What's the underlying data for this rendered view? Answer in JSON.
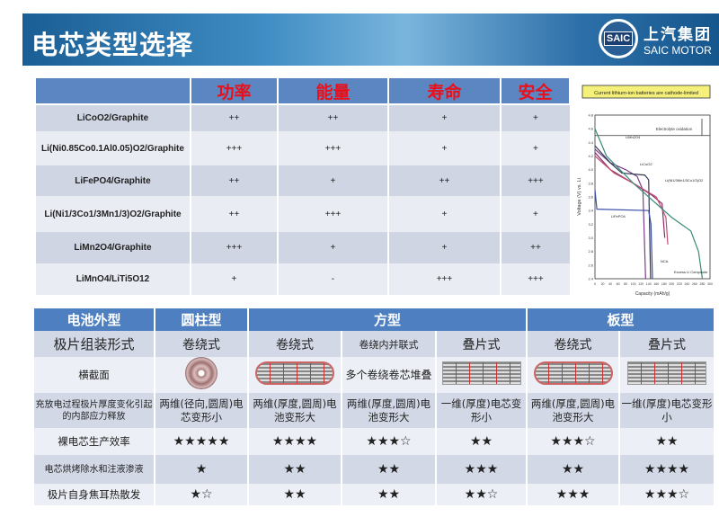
{
  "header": {
    "title": "电芯类型选择",
    "logo_badge": "SAIC",
    "logo_cn": "上汽集团",
    "logo_en": "SAIC MOTOR"
  },
  "chemistry_table": {
    "columns": [
      "",
      "功率",
      "能量",
      "寿命",
      "安全"
    ],
    "rows": [
      {
        "material": "LiCoO2/Graphite",
        "values": [
          "++",
          "++",
          "+",
          "+"
        ]
      },
      {
        "material": "Li(Ni0.85Co0.1Al0.05)O2/Graphite",
        "values": [
          "+++",
          "+++",
          "+",
          "+"
        ]
      },
      {
        "material": "LiFePO4/Graphite",
        "values": [
          "++",
          "+",
          "++",
          "+++"
        ]
      },
      {
        "material": "Li(Ni1/3Co1/3Mn1/3)O2/Graphite",
        "values": [
          "++",
          "+++",
          "+",
          "+"
        ]
      },
      {
        "material": "LiMn2O4/Graphite",
        "values": [
          "+++",
          "+",
          "+",
          "++"
        ]
      },
      {
        "material": "LiMnO4/LiTi5O12",
        "values": [
          "+",
          "-",
          "+++",
          "+++"
        ]
      }
    ]
  },
  "chart_data": {
    "type": "line",
    "title": "Current lithium-ion batteries are cathode-limited",
    "xlabel": "Capacity (mAh/g)",
    "ylabel": "Voltage (V) vs. Li",
    "xlim": [
      0,
      300
    ],
    "ylim": [
      2.4,
      4.8
    ],
    "xticks": [
      0,
      20,
      40,
      60,
      80,
      100,
      120,
      140,
      160,
      180,
      200,
      220,
      240,
      260,
      280,
      300
    ],
    "yticks": [
      2.4,
      2.6,
      2.8,
      3.0,
      3.2,
      3.4,
      3.6,
      3.8,
      4.0,
      4.2,
      4.4,
      4.6,
      4.8
    ],
    "annotation": "Electrolyte oxidation",
    "annotation_y": 4.5,
    "series": [
      {
        "name": "LiMn2O4",
        "color": "#7a3e8a",
        "points": [
          [
            0,
            4.3
          ],
          [
            40,
            4.1
          ],
          [
            80,
            4.0
          ],
          [
            110,
            3.9
          ],
          [
            125,
            3.7
          ],
          [
            132,
            2.4
          ]
        ]
      },
      {
        "name": "LiCoO2",
        "color": "#333a55",
        "points": [
          [
            0,
            4.35
          ],
          [
            40,
            4.1
          ],
          [
            70,
            3.95
          ],
          [
            130,
            3.92
          ],
          [
            140,
            3.85
          ],
          [
            145,
            2.4
          ]
        ]
      },
      {
        "name": "LiFePO4",
        "color": "#3a4fa8",
        "points": [
          [
            0,
            3.7
          ],
          [
            5,
            3.42
          ],
          [
            140,
            3.4
          ],
          [
            146,
            3.2
          ],
          [
            150,
            2.4
          ]
        ]
      },
      {
        "name": "Li(Ni1/3Mn1/3Co1/3)O2",
        "color": "#8a2a6a",
        "points": [
          [
            0,
            4.25
          ],
          [
            40,
            4.0
          ],
          [
            100,
            3.8
          ],
          [
            150,
            3.62
          ],
          [
            175,
            3.5
          ],
          [
            182,
            3.0
          ]
        ]
      },
      {
        "name": "NCA",
        "color": "#c05070",
        "points": [
          [
            0,
            4.2
          ],
          [
            50,
            3.95
          ],
          [
            100,
            3.8
          ],
          [
            160,
            3.6
          ],
          [
            185,
            3.3
          ],
          [
            190,
            2.9
          ]
        ]
      },
      {
        "name": "Excess Li Composite",
        "color": "#3a8a7a",
        "points": [
          [
            0,
            4.6
          ],
          [
            30,
            4.2
          ],
          [
            100,
            3.8
          ],
          [
            200,
            3.3
          ],
          [
            250,
            3.1
          ],
          [
            270,
            2.8
          ],
          [
            280,
            2.4
          ]
        ]
      }
    ]
  },
  "format_table": {
    "header": [
      "电池外型",
      "圆柱型",
      "方型",
      "板型"
    ],
    "assembly": {
      "label": "极片组装形式",
      "values": [
        "卷绕式",
        "卷绕式",
        "卷绕内并联式",
        "叠片式",
        "卷绕式",
        "叠片式"
      ]
    },
    "cross_section": {
      "label": "横截面",
      "stacked_text": "多个卷绕卷芯堆叠"
    },
    "stress": {
      "label": "充放电过程极片厚度变化引起的内部应力释放",
      "values": [
        "两维(径向,圆周)电芯变形小",
        "两维(厚度,圆周)电池变形大",
        "两维(厚度,圆周)电池变形大",
        "一维(厚度)电芯变形小",
        "两维(厚度,圆周)电池变形大",
        "一维(厚度)电芯变形小"
      ]
    },
    "efficiency": {
      "label": "裸电芯生产效率",
      "values": [
        "★★★★★",
        "★★★★",
        "★★★☆",
        "★★",
        "★★★☆",
        "★★"
      ]
    },
    "baking": {
      "label": "电芯烘烤除水和注液渗液",
      "values": [
        "★",
        "★★",
        "★★",
        "★★★",
        "★★",
        "★★★★"
      ]
    },
    "heat": {
      "label": "极片自身焦耳热散发",
      "values": [
        "★☆",
        "★★",
        "★★",
        "★★☆",
        "★★★",
        "★★★☆"
      ]
    }
  }
}
